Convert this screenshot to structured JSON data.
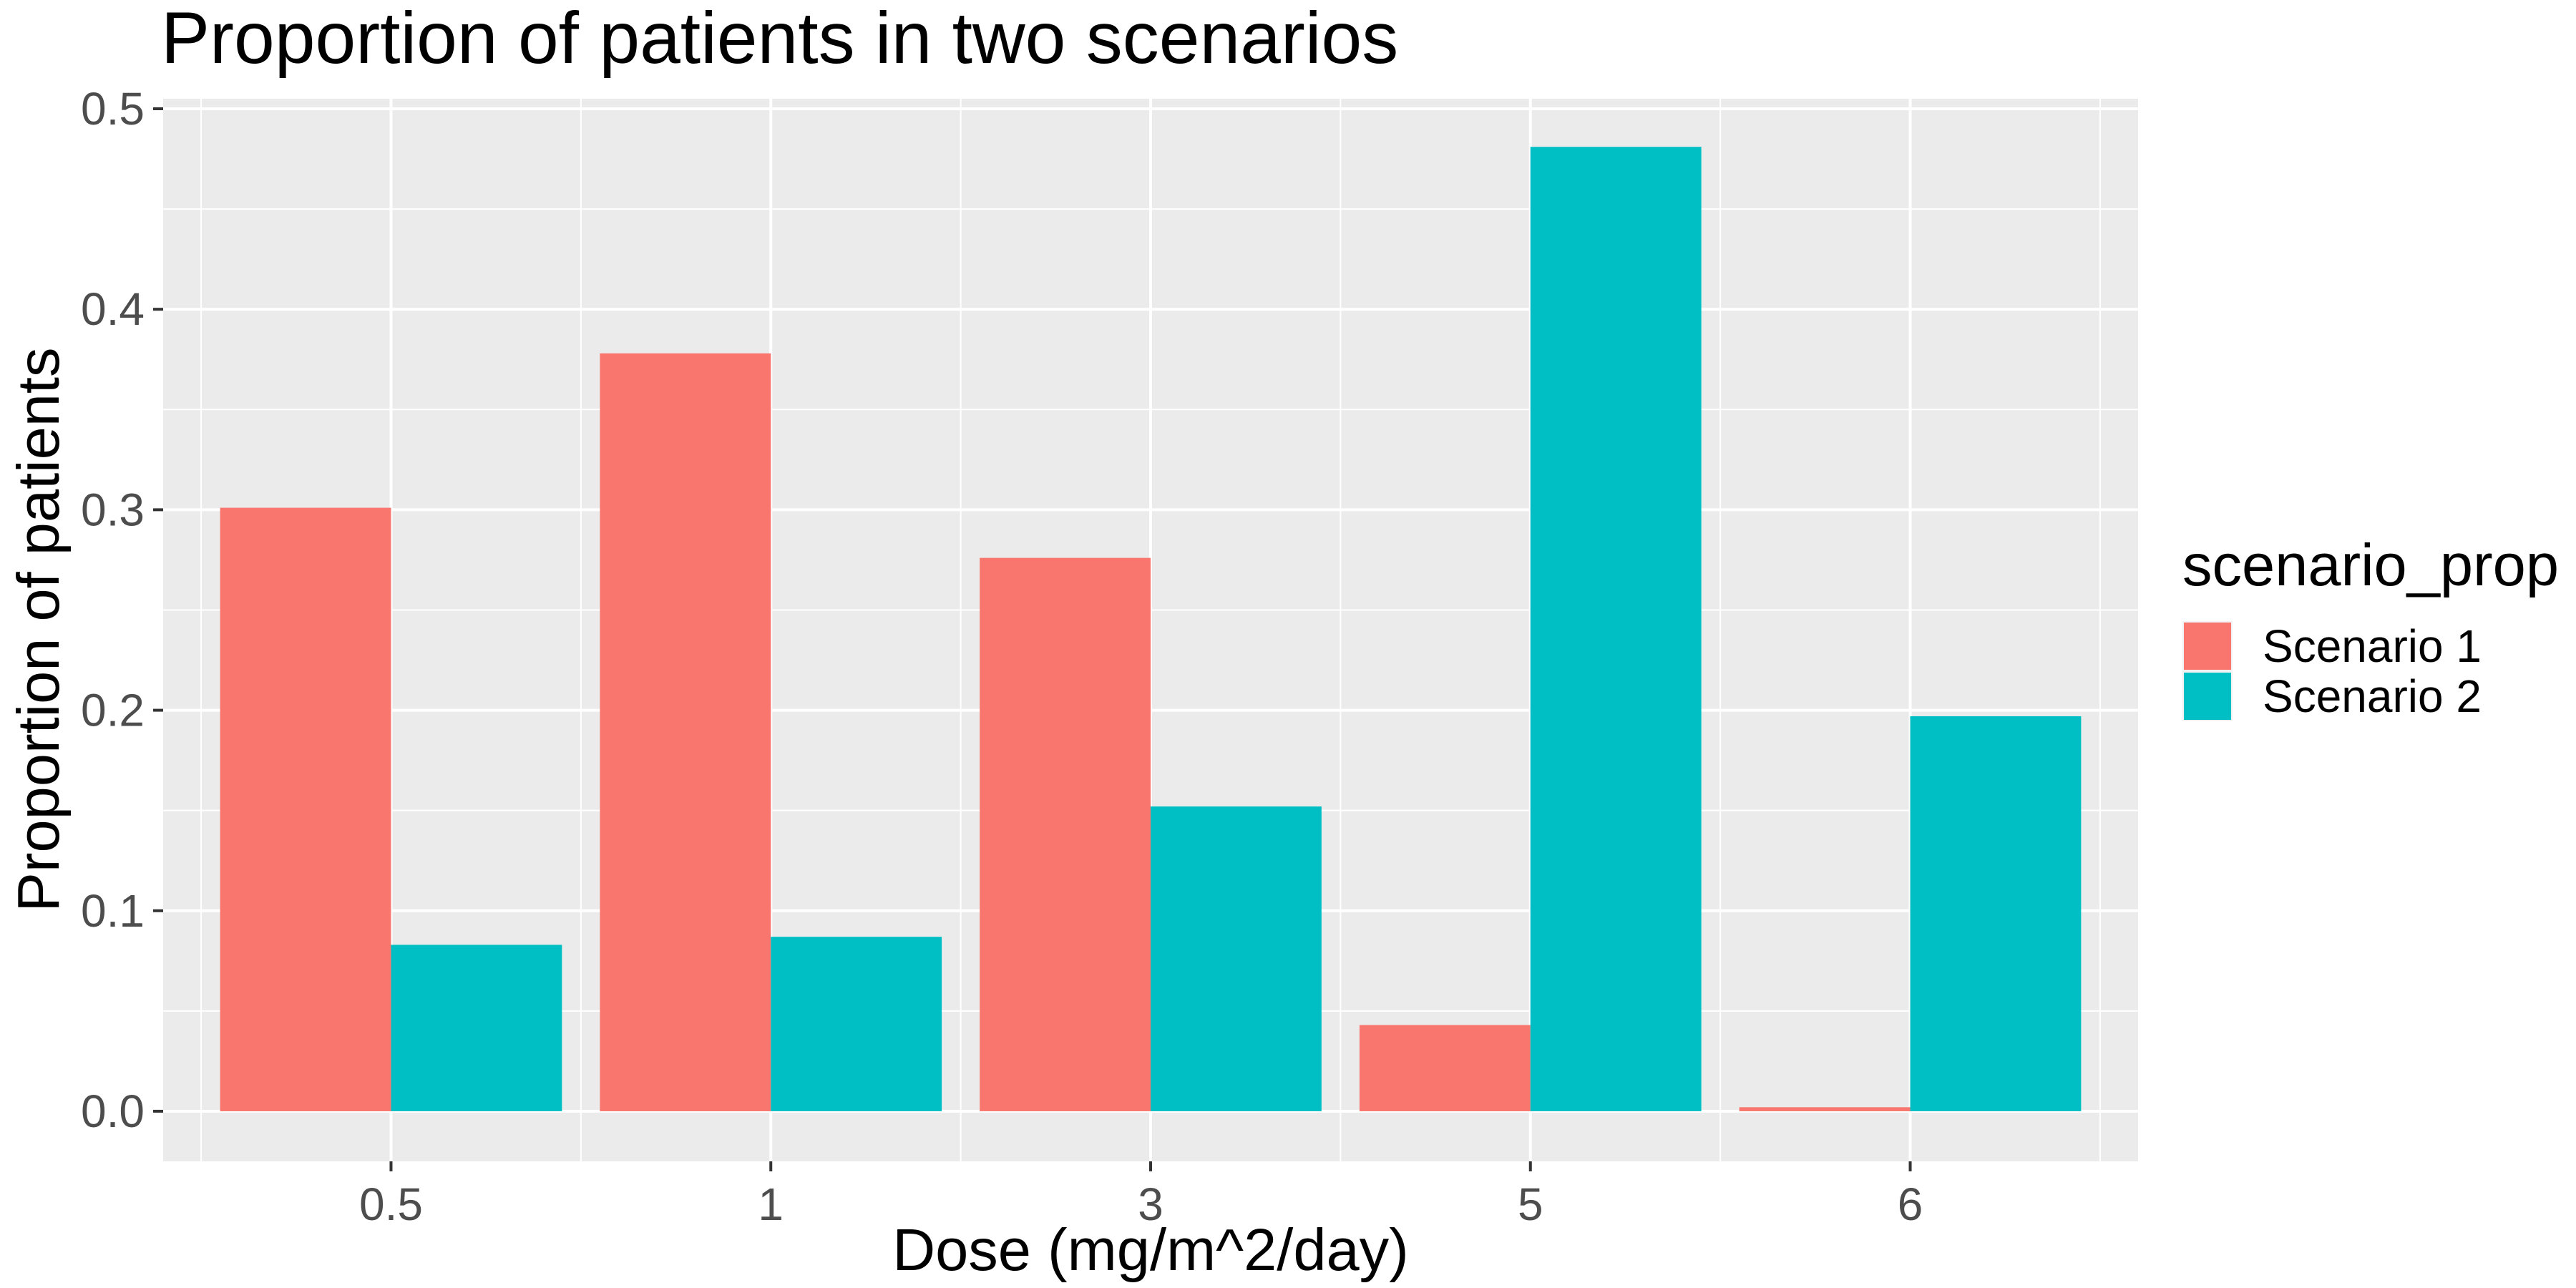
{
  "chart_data": {
    "type": "bar",
    "title": "Proportion of patients in two scenarios",
    "xlabel": "Dose (mg/m^2/day)",
    "ylabel": "Proportion of patients",
    "categories": [
      "0.5",
      "1",
      "3",
      "5",
      "6"
    ],
    "series": [
      {
        "name": "Scenario 1",
        "color": "#F8766D",
        "values": [
          0.301,
          0.378,
          0.276,
          0.043,
          0.002
        ]
      },
      {
        "name": "Scenario 2",
        "color": "#00BFC4",
        "values": [
          0.083,
          0.087,
          0.152,
          0.481,
          0.197
        ]
      }
    ],
    "ylim": [
      -0.025,
      0.505
    ],
    "yticks": [
      0.0,
      0.1,
      0.2,
      0.3,
      0.4,
      0.5
    ],
    "ytick_labels": [
      "0.0",
      "0.1",
      "0.2",
      "0.3",
      "0.4",
      "0.5"
    ],
    "legend": {
      "title": "scenario_prop",
      "position": "right"
    },
    "grid": true,
    "panel_background": "#EBEBEB"
  }
}
